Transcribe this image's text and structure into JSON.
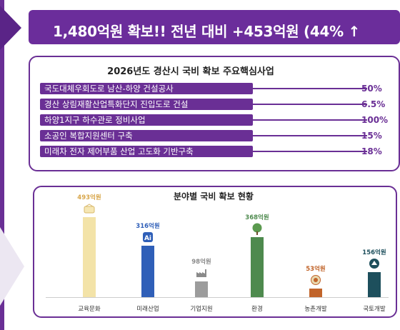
{
  "banner": {
    "text": "1,480억원 확보!!   전년 대비 +453억원 (44% ↑"
  },
  "projects": {
    "title": "2026년도 경산시 국비 확보 주요핵심사업",
    "items": [
      {
        "label": "국도대체우회도로 남산-하양 건설공사",
        "progress": "50%"
      },
      {
        "label": "경산 상림재활산업특화단지 진입도로 건설",
        "progress": "6.5%"
      },
      {
        "label": "하양1지구 하수관로 정비사업",
        "progress": "100%"
      },
      {
        "label": "소공인 복합지원센터 구축",
        "progress": "15%"
      },
      {
        "label": "미래차 전자 제어부품 산업 고도화 기반구축",
        "progress": "18%"
      }
    ]
  },
  "chart_data": {
    "type": "bar",
    "title": "분야별 국비 확보 현황",
    "categories": [
      "교육문화",
      "미래산업",
      "기업지원",
      "환경",
      "농촌개발",
      "국토개발"
    ],
    "values": [
      493,
      316,
      98,
      368,
      53,
      156
    ],
    "value_labels": [
      "493억원",
      "316억원",
      "98억원",
      "368억원",
      "53억원",
      "156억원"
    ],
    "colors": [
      "#f3e3a8",
      "#2f5fb8",
      "#9c9c9c",
      "#4e8a4e",
      "#c1642a",
      "#1d4f5c"
    ],
    "label_colors": [
      "#d8a64a",
      "#2f5fb8",
      "#8a8a8a",
      "#4e8a4e",
      "#c1642a",
      "#1d4f5c"
    ],
    "icons": [
      "book-icon",
      "ai-chip-icon",
      "factory-icon",
      "tree-icon",
      "farm-icon",
      "emblem-icon"
    ],
    "unit": "억원",
    "legend": "none",
    "grid": false
  }
}
